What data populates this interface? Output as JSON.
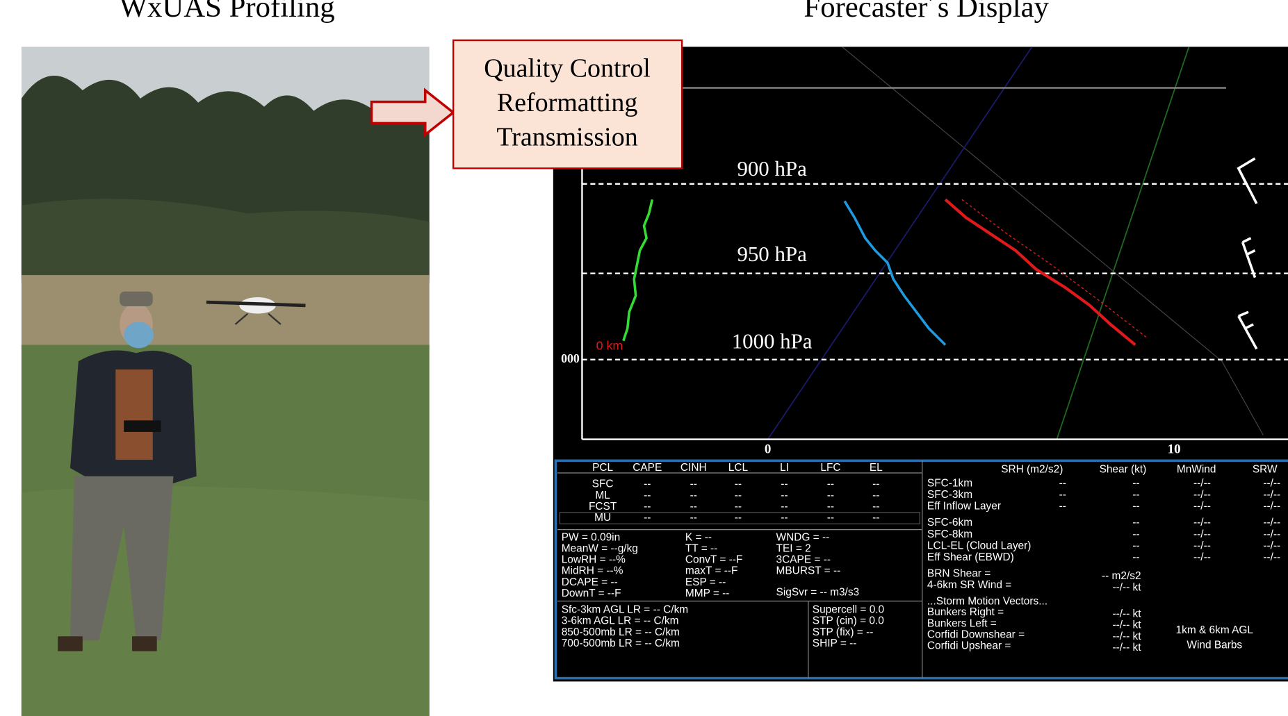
{
  "left_title": "WxUAS Profiling",
  "right_title": "Forecaster´s Display",
  "process_box": [
    "Quality Control",
    "Reformatting",
    "Transmission"
  ],
  "skewt": {
    "pressure_labels": [
      "900 hPa",
      "950 hPa",
      "1000 hPa"
    ],
    "height_label": "0 km",
    "cut_label": "000",
    "x_labels": [
      "0",
      "10"
    ]
  },
  "parcel_table": {
    "headers": [
      "PCL",
      "CAPE",
      "CINH",
      "LCL",
      "LI",
      "LFC",
      "EL"
    ],
    "rows": [
      [
        "SFC",
        "--",
        "--",
        "--",
        "--",
        "--",
        "--"
      ],
      [
        "ML",
        "--",
        "--",
        "--",
        "--",
        "--",
        "--"
      ],
      [
        "FCST",
        "--",
        "--",
        "--",
        "--",
        "--",
        "--"
      ],
      [
        "MU",
        "--",
        "--",
        "--",
        "--",
        "--",
        "--"
      ]
    ]
  },
  "indices": {
    "columns": [
      [
        "PW = 0.09in",
        "MeanW = --g/kg",
        "LowRH = --%",
        "MidRH = --%",
        "DCAPE = --",
        "DownT = --F"
      ],
      [
        "K = --",
        "TT = --",
        "ConvT = --F",
        "maxT = --F",
        "ESP = --",
        "MMP = --"
      ],
      [
        "WNDG = --",
        "TEI = 2",
        "3CAPE = --",
        "MBURST = --"
      ]
    ],
    "sigsvr": "SigSvr = -- m3/s3"
  },
  "lapse_rates": [
    "Sfc-3km AGL LR = -- C/km",
    "3-6km AGL LR = -- C/km",
    "850-500mb LR = -- C/km",
    "700-500mb LR = -- C/km"
  ],
  "severe": [
    "Supercell = 0.0",
    "STP (cin) = 0.0",
    "STP (fix) = --",
    "SHIP = --"
  ],
  "kinematics": {
    "headers": [
      "SRH (m2/s2)",
      "Shear (kt)",
      "MnWind",
      "SRW"
    ],
    "rows": [
      {
        "label": "SFC-1km",
        "srh": "--",
        "shear": "--",
        "mnwind": "--/--",
        "srw": "--/--"
      },
      {
        "label": "SFC-3km",
        "srh": "--",
        "shear": "--",
        "mnwind": "--/--",
        "srw": "--/--"
      },
      {
        "label": "Eff Inflow Layer",
        "srh": "--",
        "shear": "--",
        "mnwind": "--/--",
        "srw": "--/--"
      },
      {
        "label": "SFC-6km",
        "shear": "--",
        "mnwind": "--/--",
        "srw": "--/--"
      },
      {
        "label": "SFC-8km",
        "shear": "--",
        "mnwind": "--/--",
        "srw": "--/--"
      },
      {
        "label": "LCL-EL (Cloud Layer)",
        "shear": "--",
        "mnwind": "--/--",
        "srw": "--/--"
      },
      {
        "label": "Eff Shear (EBWD)",
        "shear": "--",
        "mnwind": "--/--",
        "srw": "--/--"
      }
    ],
    "brn_shear": {
      "label": "BRN Shear =",
      "value": "-- m2/s2"
    },
    "sr_wind": {
      "label": "4-6km SR Wind =",
      "value": "--/-- kt"
    }
  },
  "storm_motion": {
    "title": "...Storm Motion Vectors...",
    "rows": [
      {
        "label": "Bunkers Right =",
        "value": "--/-- kt"
      },
      {
        "label": "Bunkers Left =",
        "value": "--/-- kt"
      },
      {
        "label": "Corfidi Downshear =",
        "value": "--/-- kt"
      },
      {
        "label": "Corfidi Upshear =",
        "value": "--/-- kt"
      }
    ]
  },
  "wind_barb_note": [
    "1km & 6km AGL",
    "Wind Barbs"
  ]
}
